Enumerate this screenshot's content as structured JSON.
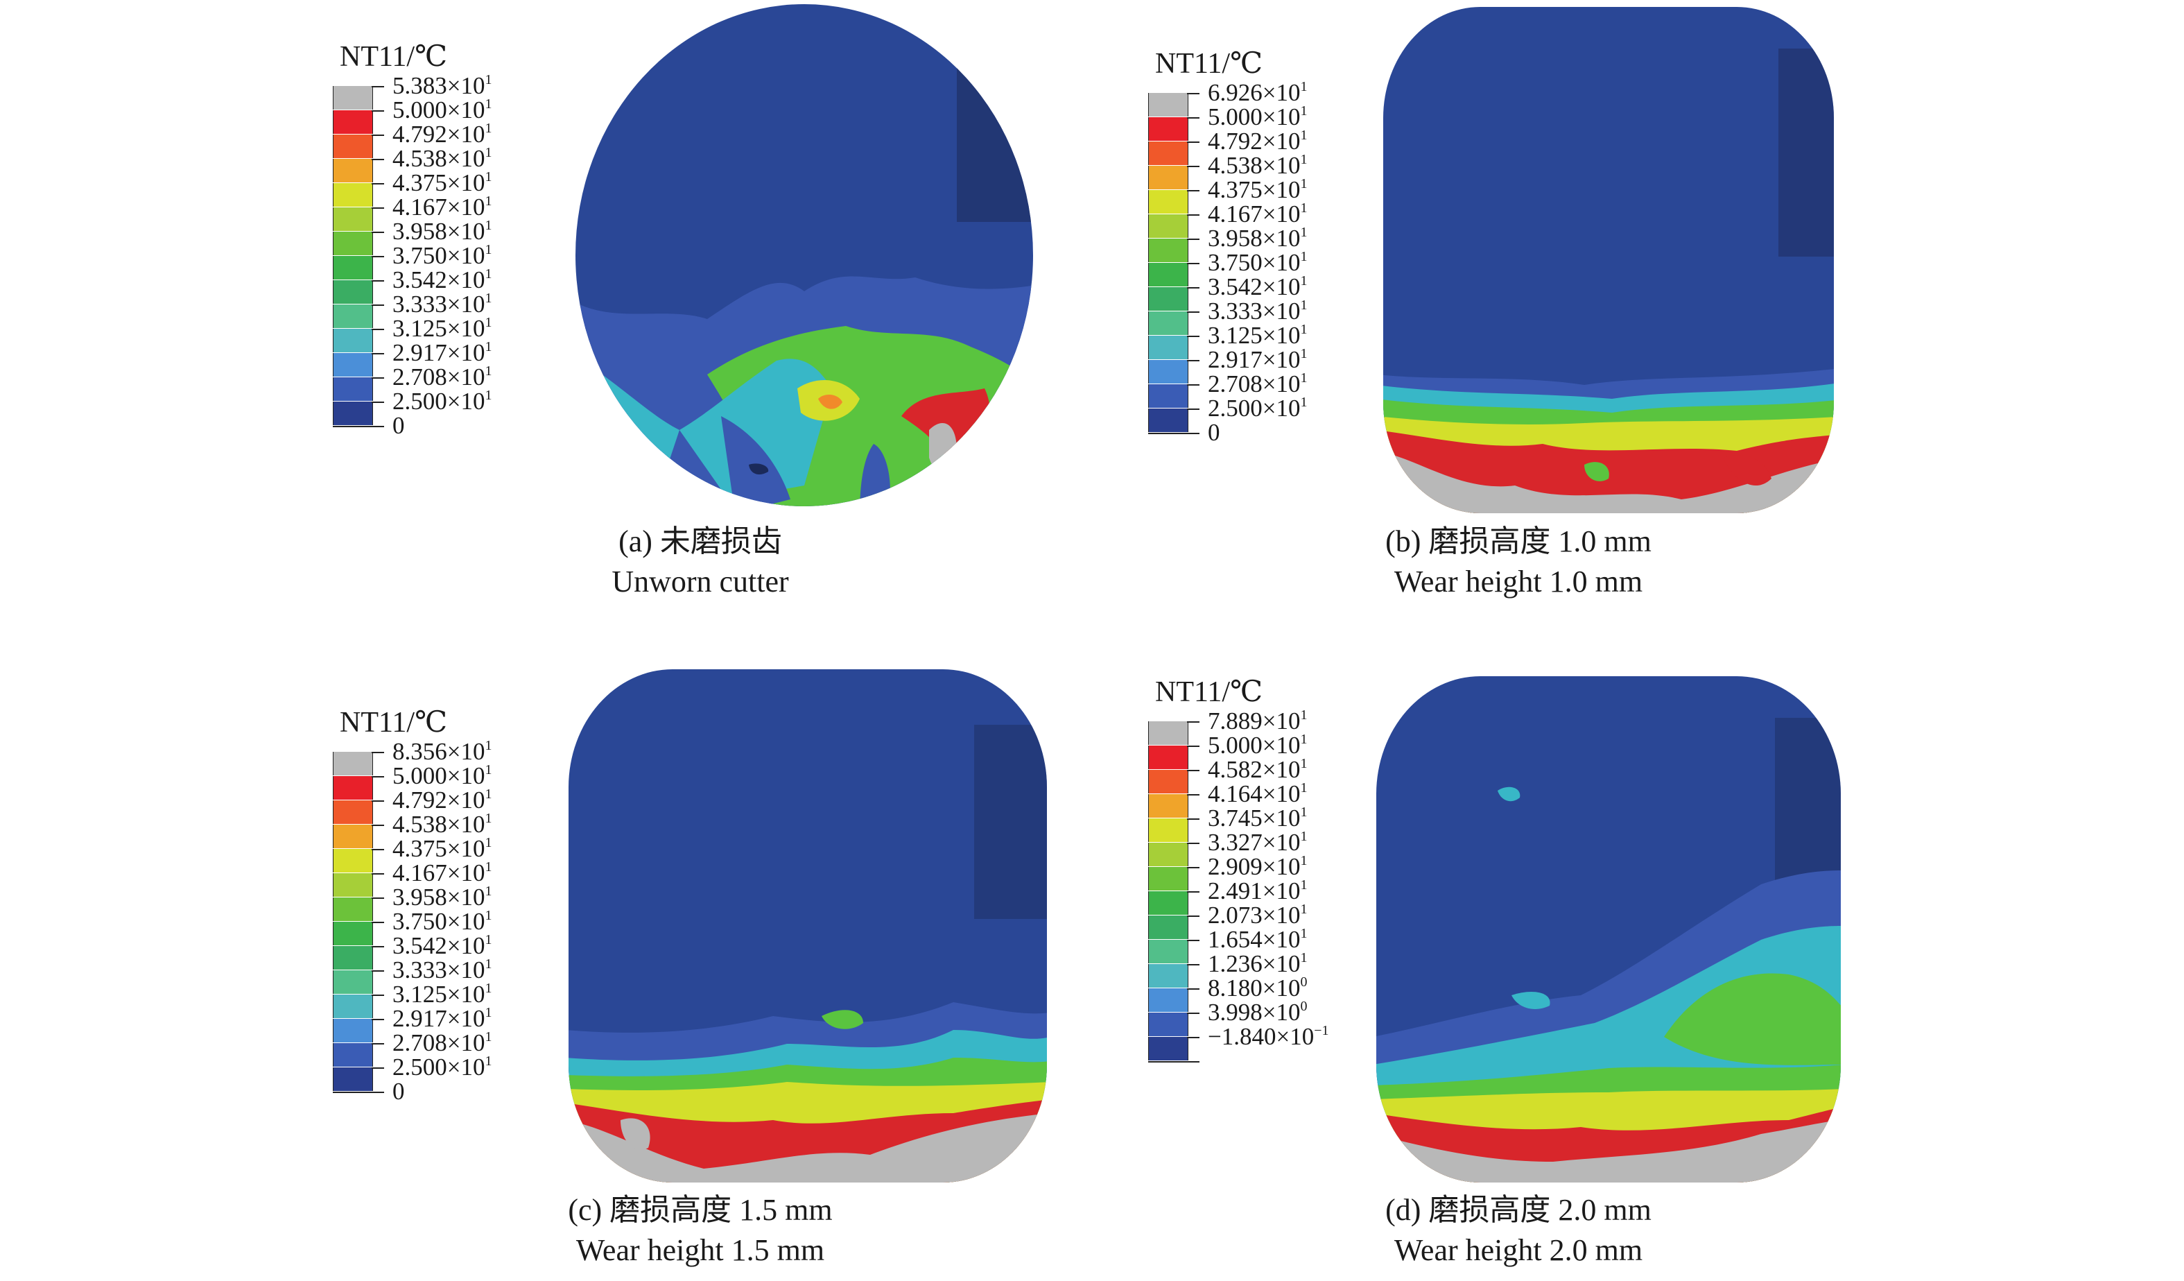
{
  "panels": [
    {
      "legend_title": "NT11/℃",
      "legend_labels": [
        {
          "m": "5.383×10",
          "e": "1"
        },
        {
          "m": "5.000×10",
          "e": "1"
        },
        {
          "m": "4.792×10",
          "e": "1"
        },
        {
          "m": "4.538×10",
          "e": "1"
        },
        {
          "m": "4.375×10",
          "e": "1"
        },
        {
          "m": "4.167×10",
          "e": "1"
        },
        {
          "m": "3.958×10",
          "e": "1"
        },
        {
          "m": "3.750×10",
          "e": "1"
        },
        {
          "m": "3.542×10",
          "e": "1"
        },
        {
          "m": "3.333×10",
          "e": "1"
        },
        {
          "m": "3.125×10",
          "e": "1"
        },
        {
          "m": "2.917×10",
          "e": "1"
        },
        {
          "m": "2.708×10",
          "e": "1"
        },
        {
          "m": "2.500×10",
          "e": "1"
        },
        {
          "m": "0",
          "e": ""
        }
      ],
      "caption_cn": "(a) 未磨损齿",
      "caption_en": "Unworn cutter"
    },
    {
      "legend_title": "NT11/℃",
      "legend_labels": [
        {
          "m": "6.926×10",
          "e": "1"
        },
        {
          "m": "5.000×10",
          "e": "1"
        },
        {
          "m": "4.792×10",
          "e": "1"
        },
        {
          "m": "4.538×10",
          "e": "1"
        },
        {
          "m": "4.375×10",
          "e": "1"
        },
        {
          "m": "4.167×10",
          "e": "1"
        },
        {
          "m": "3.958×10",
          "e": "1"
        },
        {
          "m": "3.750×10",
          "e": "1"
        },
        {
          "m": "3.542×10",
          "e": "1"
        },
        {
          "m": "3.333×10",
          "e": "1"
        },
        {
          "m": "3.125×10",
          "e": "1"
        },
        {
          "m": "2.917×10",
          "e": "1"
        },
        {
          "m": "2.708×10",
          "e": "1"
        },
        {
          "m": "2.500×10",
          "e": "1"
        },
        {
          "m": "0",
          "e": ""
        }
      ],
      "caption_cn": "(b) 磨损高度 1.0 mm",
      "caption_en": "Wear height 1.0 mm"
    },
    {
      "legend_title": "NT11/℃",
      "legend_labels": [
        {
          "m": "8.356×10",
          "e": "1"
        },
        {
          "m": "5.000×10",
          "e": "1"
        },
        {
          "m": "4.792×10",
          "e": "1"
        },
        {
          "m": "4.538×10",
          "e": "1"
        },
        {
          "m": "4.375×10",
          "e": "1"
        },
        {
          "m": "4.167×10",
          "e": "1"
        },
        {
          "m": "3.958×10",
          "e": "1"
        },
        {
          "m": "3.750×10",
          "e": "1"
        },
        {
          "m": "3.542×10",
          "e": "1"
        },
        {
          "m": "3.333×10",
          "e": "1"
        },
        {
          "m": "3.125×10",
          "e": "1"
        },
        {
          "m": "2.917×10",
          "e": "1"
        },
        {
          "m": "2.708×10",
          "e": "1"
        },
        {
          "m": "2.500×10",
          "e": "1"
        },
        {
          "m": "0",
          "e": ""
        }
      ],
      "caption_cn": "(c) 磨损高度 1.5 mm",
      "caption_en": "Wear height 1.5 mm"
    },
    {
      "legend_title": "NT11/℃",
      "legend_labels": [
        {
          "m": "7.889×10",
          "e": "1"
        },
        {
          "m": "5.000×10",
          "e": "1"
        },
        {
          "m": "4.582×10",
          "e": "1"
        },
        {
          "m": "4.164×10",
          "e": "1"
        },
        {
          "m": "3.745×10",
          "e": "1"
        },
        {
          "m": "3.327×10",
          "e": "1"
        },
        {
          "m": "2.909×10",
          "e": "1"
        },
        {
          "m": "2.491×10",
          "e": "1"
        },
        {
          "m": "2.073×10",
          "e": "1"
        },
        {
          "m": "1.654×10",
          "e": "1"
        },
        {
          "m": "1.236×10",
          "e": "1"
        },
        {
          "m": "8.180×10",
          "e": "0"
        },
        {
          "m": "3.998×10",
          "e": "0"
        },
        {
          "m": "−1.840×10",
          "e": "−1"
        },
        {
          "m": "",
          "e": ""
        }
      ],
      "caption_cn": "(d) 磨损高度 2.0 mm",
      "caption_en": "Wear height 2.0 mm"
    }
  ],
  "legend_colors": [
    "#b9b9b9",
    "#e8202a",
    "#f0582a",
    "#f0a42a",
    "#d7e02a",
    "#a6cf38",
    "#6cc23a",
    "#3cb44a",
    "#3aad63",
    "#52bf8a",
    "#4fb7c0",
    "#4b8fd8",
    "#3a5cb5",
    "#2a3f8f",
    "#222222"
  ],
  "palette": {
    "cold": "#2a4796",
    "mid": "#3a58b0",
    "cyan": "#38b7c7",
    "green": "#5ac43f",
    "yellow": "#d3df2b",
    "orange": "#f18a2a",
    "red": "#d8262b",
    "hot": "#b8b8b8",
    "edge": "#1b2a5a"
  }
}
